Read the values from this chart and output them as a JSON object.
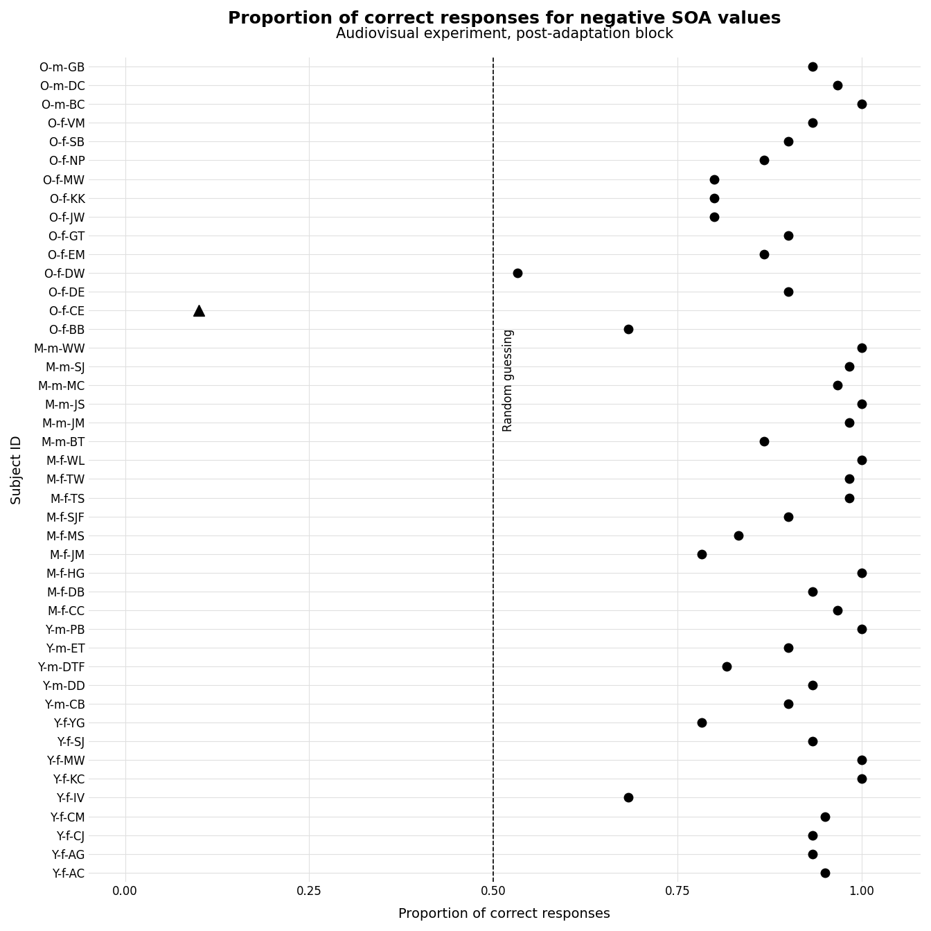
{
  "title": "Proportion of correct responses for negative SOA values",
  "subtitle": "Audiovisual experiment, post-adaptation block",
  "xlabel": "Proportion of correct responses",
  "ylabel": "Subject ID",
  "xlim": [
    -0.05,
    1.08
  ],
  "xticks": [
    0.0,
    0.25,
    0.5,
    0.75,
    1.0
  ],
  "xticklabels": [
    "0.00",
    "0.25",
    "0.50",
    "0.75",
    "1.00"
  ],
  "dashed_line_x": 0.5,
  "dashed_label": "Random guessing",
  "subjects": [
    "O-m-GB",
    "O-m-DC",
    "O-m-BC",
    "O-f-VM",
    "O-f-SB",
    "O-f-NP",
    "O-f-MW",
    "O-f-KK",
    "O-f-JW",
    "O-f-GT",
    "O-f-EM",
    "O-f-DW",
    "O-f-DE",
    "O-f-CE",
    "O-f-BB",
    "M-m-WW",
    "M-m-SJ",
    "M-m-MC",
    "M-m-JS",
    "M-m-JM",
    "M-m-BT",
    "M-f-WL",
    "M-f-TW",
    "M-f-TS",
    "M-f-SJF",
    "M-f-MS",
    "M-f-JM",
    "M-f-HG",
    "M-f-DB",
    "M-f-CC",
    "Y-m-PB",
    "Y-m-ET",
    "Y-m-DTF",
    "Y-m-DD",
    "Y-m-CB",
    "Y-f-YG",
    "Y-f-SJ",
    "Y-f-MW",
    "Y-f-KC",
    "Y-f-IV",
    "Y-f-CM",
    "Y-f-CJ",
    "Y-f-AG",
    "Y-f-AC"
  ],
  "values": [
    0.933,
    0.967,
    1.0,
    0.933,
    0.9,
    0.867,
    0.8,
    0.8,
    0.8,
    0.9,
    0.867,
    0.533,
    0.9,
    0.1,
    0.683,
    1.0,
    0.983,
    0.967,
    1.0,
    0.983,
    0.867,
    1.0,
    0.983,
    0.983,
    0.9,
    0.833,
    0.783,
    1.0,
    0.933,
    0.967,
    1.0,
    0.9,
    0.817,
    0.933,
    0.9,
    0.783,
    0.933,
    1.0,
    1.0,
    0.683,
    0.95,
    0.933,
    0.933,
    0.95
  ],
  "markers": [
    "o",
    "o",
    "o",
    "o",
    "o",
    "o",
    "o",
    "o",
    "o",
    "o",
    "o",
    "o",
    "o",
    "^",
    "o",
    "o",
    "o",
    "o",
    "o",
    "o",
    "o",
    "o",
    "o",
    "o",
    "o",
    "o",
    "o",
    "o",
    "o",
    "o",
    "o",
    "o",
    "o",
    "o",
    "o",
    "o",
    "o",
    "o",
    "o",
    "o",
    "o",
    "o",
    "o",
    "o"
  ],
  "dot_color": "#000000",
  "grid_color": "#e0e0e0",
  "background_color": "#ffffff",
  "title_fontsize": 18,
  "subtitle_fontsize": 15,
  "label_fontsize": 14,
  "tick_fontsize": 12
}
